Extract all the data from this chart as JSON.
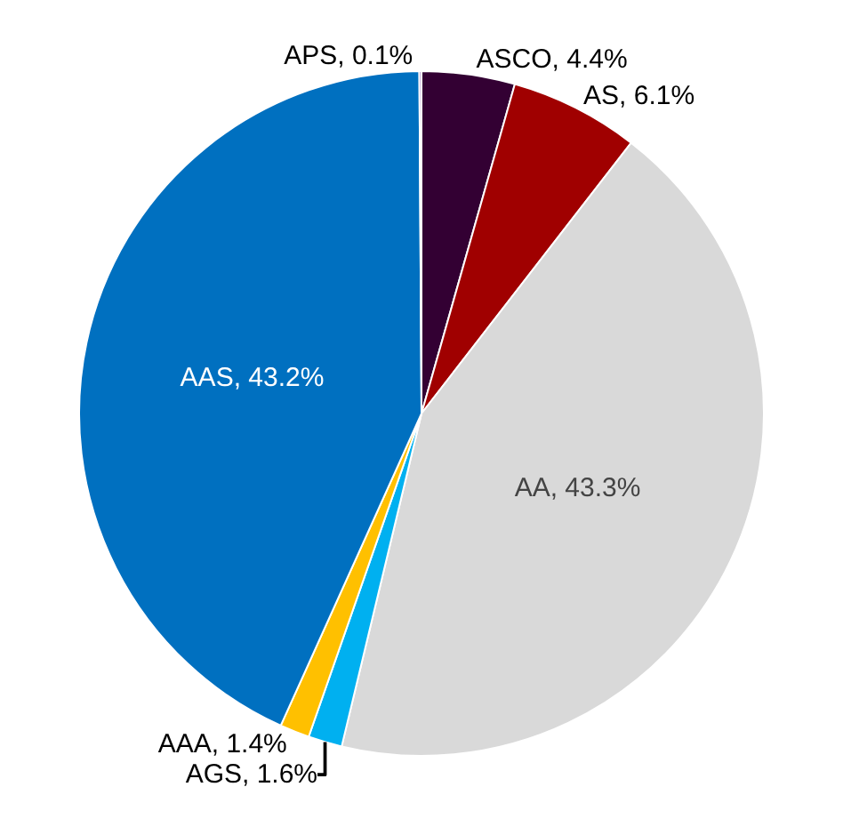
{
  "chart_data": {
    "type": "pie",
    "categories": [
      "ASCO",
      "AS",
      "AA",
      "AGS",
      "AAA",
      "AAS",
      "APS"
    ],
    "values": [
      4.4,
      6.1,
      43.3,
      1.6,
      1.4,
      43.2,
      0.1
    ],
    "value_labels": [
      "4.4%",
      "6.1%",
      "43.3%",
      "1.6%",
      "1.4%",
      "43.2%",
      "0.1%"
    ],
    "colors": [
      "#330033",
      "#a00000",
      "#d9d9d9",
      "#00b0f0",
      "#ffc000",
      "#0070c0",
      "#7030a0"
    ],
    "legend": false
  }
}
